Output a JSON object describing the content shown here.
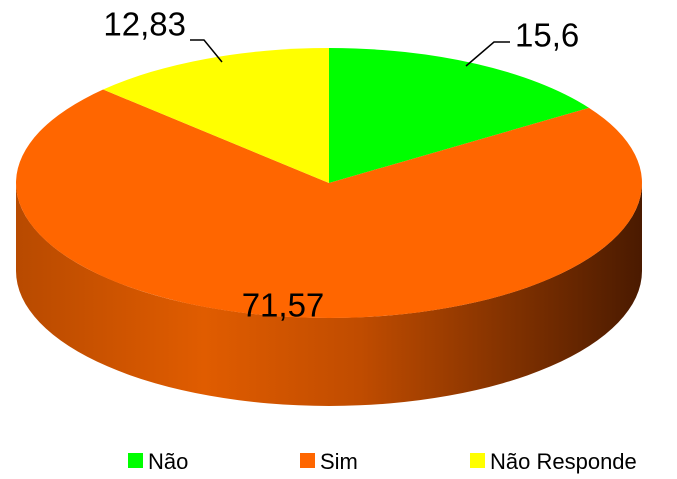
{
  "chart_data": {
    "type": "pie",
    "categories": [
      "Não",
      "Sim",
      "Não Responde"
    ],
    "values": [
      15.6,
      71.57,
      12.83
    ],
    "value_labels": [
      "15,6",
      "71,57",
      "12,83"
    ],
    "colors": [
      "#00ff00",
      "#ff6600",
      "#ffff00"
    ],
    "legend": "bottom"
  }
}
